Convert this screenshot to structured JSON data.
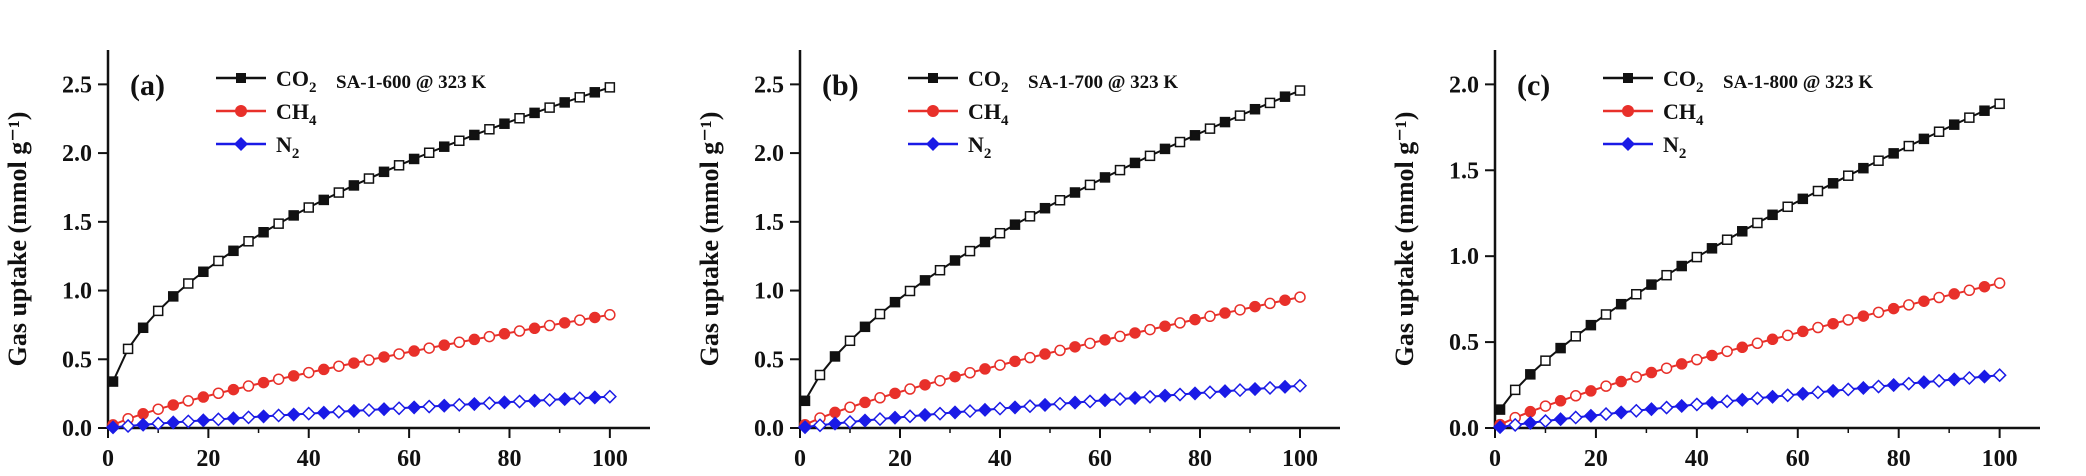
{
  "colors": {
    "CO2": "#111111",
    "CH4": "#e8302a",
    "N2": "#1a1ae6",
    "axis": "#111111"
  },
  "chart_data": [
    {
      "type": "line",
      "panel_label": "(a)",
      "annotation": "SA-1-600 @ 323 K",
      "xlabel": "",
      "ylabel": "Gas uptake (mmol g⁻¹)",
      "xlim": [
        0,
        108
      ],
      "ylim": [
        0,
        2.75
      ],
      "xticks": [
        0,
        20,
        40,
        60,
        80,
        100
      ],
      "yticks": [
        0.0,
        0.5,
        1.0,
        1.5,
        2.0,
        2.5
      ],
      "ytick_labels": [
        "0.0",
        "0.5",
        "1.0",
        "1.5",
        "2.0",
        "2.5"
      ],
      "legend": [
        "CO2",
        "CH4",
        "N2"
      ],
      "legend_placement": "top-left",
      "series": [
        {
          "name": "CO2",
          "ymax": 2.49,
          "exponent": 0.5,
          "y0": 0.1
        },
        {
          "name": "CH4",
          "ymax": 0.83,
          "exponent": 0.78,
          "y0": 0.0
        },
        {
          "name": "N2",
          "ymax": 0.23,
          "exponent": 0.85,
          "y0": 0.0
        }
      ]
    },
    {
      "type": "line",
      "panel_label": "(b)",
      "annotation": "SA-1-700 @ 323 K",
      "xlabel": "",
      "ylabel": "Gas uptake (mmol g⁻¹)",
      "xlim": [
        0,
        108
      ],
      "ylim": [
        0,
        2.75
      ],
      "xticks": [
        0,
        20,
        40,
        60,
        80,
        100
      ],
      "yticks": [
        0.0,
        0.5,
        1.0,
        1.5,
        2.0,
        2.5
      ],
      "ytick_labels": [
        "0.0",
        "0.5",
        "1.0",
        "1.5",
        "2.0",
        "2.5"
      ],
      "legend": [
        "CO2",
        "CH4",
        "N2"
      ],
      "legend_placement": "top-left",
      "series": [
        {
          "name": "CO2",
          "ymax": 2.47,
          "exponent": 0.62,
          "y0": 0.06
        },
        {
          "name": "CH4",
          "ymax": 0.96,
          "exponent": 0.8,
          "y0": 0.0
        },
        {
          "name": "N2",
          "ymax": 0.31,
          "exponent": 0.85,
          "y0": 0.0
        }
      ]
    },
    {
      "type": "line",
      "panel_label": "(c)",
      "annotation": "SA-1-800 @ 323 K",
      "xlabel": "",
      "ylabel": "Gas uptake (mmol g⁻¹)",
      "xlim": [
        0,
        108
      ],
      "ylim": [
        0,
        2.2
      ],
      "xticks": [
        0,
        20,
        40,
        60,
        80,
        100
      ],
      "yticks": [
        0.0,
        0.5,
        1.0,
        1.5,
        2.0
      ],
      "ytick_labels": [
        "0.0",
        "0.5",
        "1.0",
        "1.5",
        "2.0"
      ],
      "legend": [
        "CO2",
        "CH4",
        "N2"
      ],
      "legend_placement": "top-left",
      "series": [
        {
          "name": "CO2",
          "ymax": 1.9,
          "exponent": 0.72,
          "y0": 0.04
        },
        {
          "name": "CH4",
          "ymax": 0.85,
          "exponent": 0.82,
          "y0": 0.0
        },
        {
          "name": "N2",
          "ymax": 0.31,
          "exponent": 0.88,
          "y0": 0.0
        }
      ]
    }
  ]
}
